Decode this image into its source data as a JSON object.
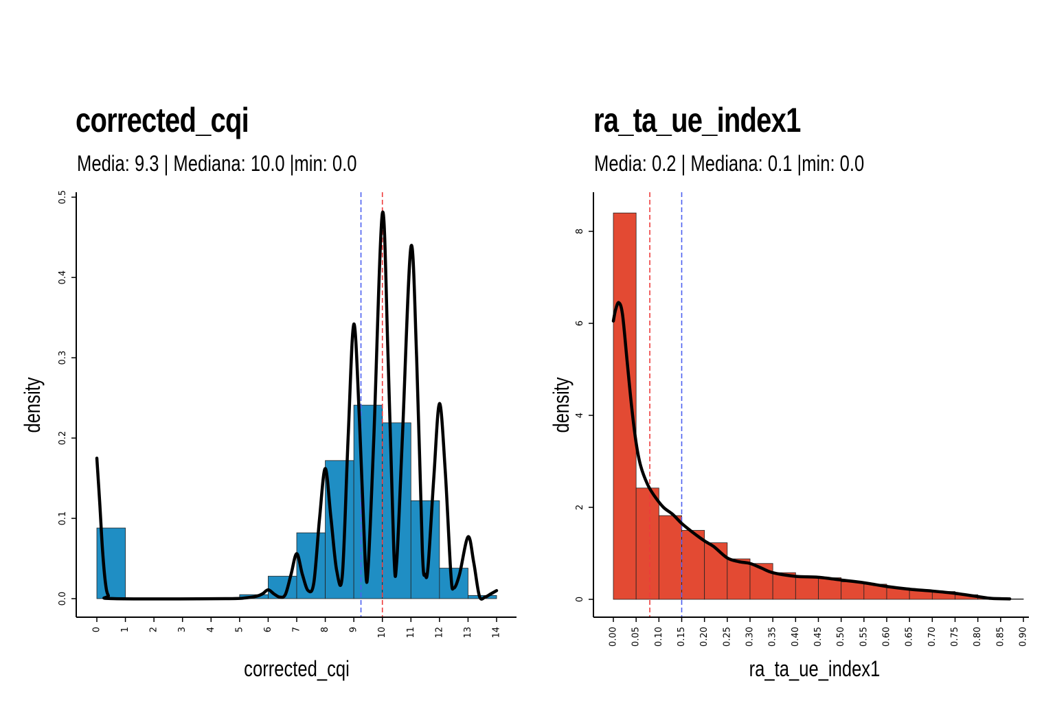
{
  "chart_data": [
    {
      "type": "bar",
      "title": "corrected_cqi",
      "subtitle": "Media: 9.3 | Mediana: 10.0 |min: 0.0",
      "xlabel": "corrected_cqi",
      "ylabel": "density",
      "bar_color": "#1f8ec4",
      "xlim": [
        0,
        14
      ],
      "ylim": [
        0,
        0.5
      ],
      "xticks": [
        "0",
        "1",
        "2",
        "3",
        "4",
        "5",
        "6",
        "7",
        "8",
        "9",
        "10",
        "11",
        "12",
        "13",
        "14"
      ],
      "yticks": [
        "0.0",
        "0.1",
        "0.2",
        "0.3",
        "0.4",
        "0.5"
      ],
      "bins": [
        {
          "x0": 0.0,
          "x1": 1.0,
          "density": 0.088
        },
        {
          "x0": 5.0,
          "x1": 6.0,
          "density": 0.005
        },
        {
          "x0": 6.0,
          "x1": 7.0,
          "density": 0.028
        },
        {
          "x0": 7.0,
          "x1": 8.0,
          "density": 0.082
        },
        {
          "x0": 8.0,
          "x1": 9.0,
          "density": 0.172
        },
        {
          "x0": 9.0,
          "x1": 10.0,
          "density": 0.241
        },
        {
          "x0": 10.0,
          "x1": 11.0,
          "density": 0.219
        },
        {
          "x0": 11.0,
          "x1": 12.0,
          "density": 0.122
        },
        {
          "x0": 12.0,
          "x1": 13.0,
          "density": 0.038
        },
        {
          "x0": 13.0,
          "x1": 14.0,
          "density": 0.004
        }
      ],
      "density_curve": [
        [
          0,
          0.175
        ],
        [
          0.1,
          0.12
        ],
        [
          0.2,
          0.06
        ],
        [
          0.3,
          0.02
        ],
        [
          0.4,
          0.004
        ],
        [
          0.6,
          0.0
        ],
        [
          4.5,
          0.0
        ],
        [
          5.2,
          0.001
        ],
        [
          5.6,
          0.003
        ],
        [
          5.8,
          0.006
        ],
        [
          6.0,
          0.011
        ],
        [
          6.2,
          0.006
        ],
        [
          6.4,
          0.002
        ],
        [
          6.6,
          0.005
        ],
        [
          6.8,
          0.03
        ],
        [
          7.0,
          0.056
        ],
        [
          7.2,
          0.03
        ],
        [
          7.4,
          0.01
        ],
        [
          7.6,
          0.02
        ],
        [
          7.8,
          0.1
        ],
        [
          8.0,
          0.162
        ],
        [
          8.2,
          0.1
        ],
        [
          8.4,
          0.035
        ],
        [
          8.6,
          0.03
        ],
        [
          8.8,
          0.2
        ],
        [
          9.0,
          0.342
        ],
        [
          9.2,
          0.22
        ],
        [
          9.4,
          0.045
        ],
        [
          9.5,
          0.038
        ],
        [
          9.7,
          0.2
        ],
        [
          10.0,
          0.48
        ],
        [
          10.2,
          0.3
        ],
        [
          10.4,
          0.06
        ],
        [
          10.5,
          0.045
        ],
        [
          10.7,
          0.2
        ],
        [
          11.0,
          0.438
        ],
        [
          11.2,
          0.3
        ],
        [
          11.4,
          0.06
        ],
        [
          11.5,
          0.03
        ],
        [
          11.6,
          0.04
        ],
        [
          11.8,
          0.15
        ],
        [
          12.0,
          0.243
        ],
        [
          12.2,
          0.16
        ],
        [
          12.4,
          0.03
        ],
        [
          12.5,
          0.013
        ],
        [
          12.7,
          0.03
        ],
        [
          13.0,
          0.077
        ],
        [
          13.2,
          0.045
        ],
        [
          13.4,
          0.003
        ],
        [
          13.6,
          0.002
        ],
        [
          13.8,
          0.006
        ],
        [
          14.0,
          0.01
        ]
      ],
      "mean_line": {
        "x": 9.25,
        "color": "#4b5ff0"
      },
      "median_line": {
        "x": 10.0,
        "color": "#ee3b3b"
      }
    },
    {
      "type": "bar",
      "title": "ra_ta_ue_index1",
      "subtitle": "Media: 0.2 | Mediana: 0.1 |min: 0.0",
      "xlabel": "ra_ta_ue_index1",
      "ylabel": "density",
      "bar_color": "#e34a33",
      "xlim": [
        0,
        0.9
      ],
      "ylim": [
        0,
        8.5
      ],
      "xticks": [
        "0.00",
        "0.05",
        "0.10",
        "0.15",
        "0.20",
        "0.25",
        "0.30",
        "0.35",
        "0.40",
        "0.45",
        "0.50",
        "0.55",
        "0.60",
        "0.65",
        "0.70",
        "0.75",
        "0.80",
        "0.85",
        "0.90"
      ],
      "yticks": [
        "0",
        "2",
        "4",
        "6",
        "8"
      ],
      "bins": [
        {
          "x0": 0.0,
          "x1": 0.05,
          "density": 8.4
        },
        {
          "x0": 0.05,
          "x1": 0.1,
          "density": 2.42
        },
        {
          "x0": 0.1,
          "x1": 0.15,
          "density": 1.82
        },
        {
          "x0": 0.15,
          "x1": 0.2,
          "density": 1.5
        },
        {
          "x0": 0.2,
          "x1": 0.25,
          "density": 1.23
        },
        {
          "x0": 0.25,
          "x1": 0.3,
          "density": 0.88
        },
        {
          "x0": 0.3,
          "x1": 0.35,
          "density": 0.78
        },
        {
          "x0": 0.35,
          "x1": 0.4,
          "density": 0.58
        },
        {
          "x0": 0.4,
          "x1": 0.45,
          "density": 0.49
        },
        {
          "x0": 0.45,
          "x1": 0.5,
          "density": 0.47
        },
        {
          "x0": 0.5,
          "x1": 0.55,
          "density": 0.38
        },
        {
          "x0": 0.55,
          "x1": 0.6,
          "density": 0.33
        },
        {
          "x0": 0.6,
          "x1": 0.65,
          "density": 0.25
        },
        {
          "x0": 0.65,
          "x1": 0.7,
          "density": 0.2
        },
        {
          "x0": 0.7,
          "x1": 0.75,
          "density": 0.17
        },
        {
          "x0": 0.75,
          "x1": 0.8,
          "density": 0.1
        },
        {
          "x0": 0.8,
          "x1": 0.85,
          "density": 0.04
        },
        {
          "x0": 0.85,
          "x1": 0.9,
          "density": 0.01
        }
      ],
      "density_curve": [
        [
          0.0,
          6.05
        ],
        [
          0.005,
          6.3
        ],
        [
          0.012,
          6.45
        ],
        [
          0.02,
          6.2
        ],
        [
          0.03,
          5.2
        ],
        [
          0.04,
          4.2
        ],
        [
          0.05,
          3.4
        ],
        [
          0.06,
          2.9
        ],
        [
          0.075,
          2.5
        ],
        [
          0.09,
          2.25
        ],
        [
          0.11,
          2.0
        ],
        [
          0.13,
          1.85
        ],
        [
          0.15,
          1.65
        ],
        [
          0.175,
          1.45
        ],
        [
          0.2,
          1.27
        ],
        [
          0.22,
          1.15
        ],
        [
          0.25,
          0.9
        ],
        [
          0.275,
          0.82
        ],
        [
          0.3,
          0.78
        ],
        [
          0.325,
          0.68
        ],
        [
          0.35,
          0.58
        ],
        [
          0.4,
          0.5
        ],
        [
          0.45,
          0.48
        ],
        [
          0.5,
          0.42
        ],
        [
          0.55,
          0.36
        ],
        [
          0.6,
          0.28
        ],
        [
          0.65,
          0.22
        ],
        [
          0.7,
          0.18
        ],
        [
          0.75,
          0.13
        ],
        [
          0.8,
          0.06
        ],
        [
          0.83,
          0.02
        ],
        [
          0.87,
          0.01
        ]
      ],
      "mean_line": {
        "x": 0.15,
        "color": "#4b5ff0"
      },
      "median_line": {
        "x": 0.08,
        "color": "#ee3b3b"
      }
    }
  ]
}
